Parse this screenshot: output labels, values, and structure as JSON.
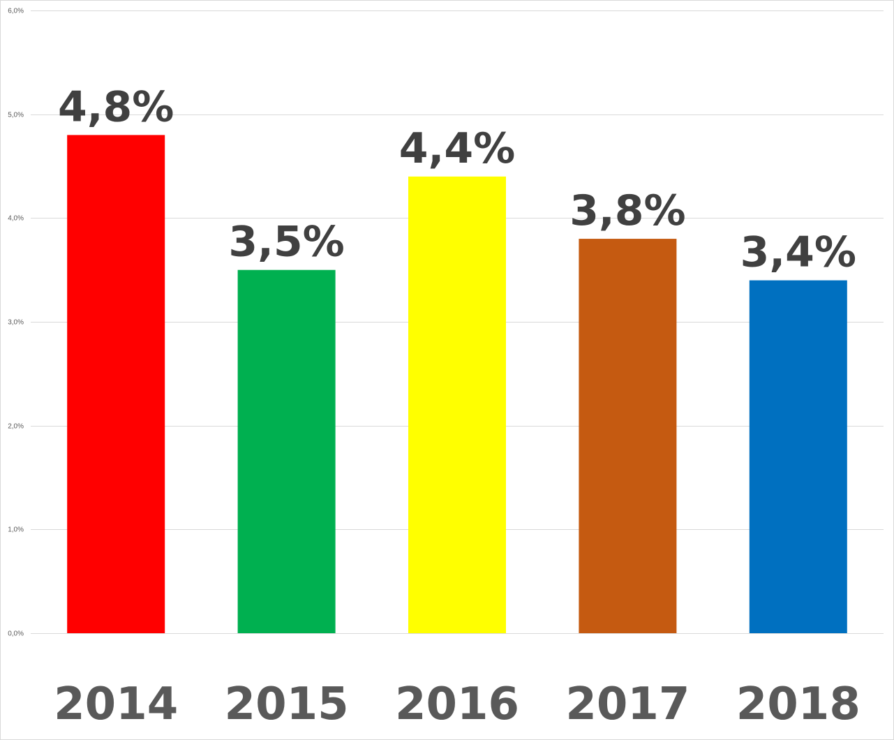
{
  "chart_data": {
    "type": "bar",
    "categories": [
      "2014",
      "2015",
      "2016",
      "2017",
      "2018"
    ],
    "values": [
      4.8,
      3.5,
      4.4,
      3.8,
      3.4
    ],
    "data_labels": [
      "4,8%",
      "3,5%",
      "4,4%",
      "3,8%",
      "3,4%"
    ],
    "colors": [
      "#ff0000",
      "#00b050",
      "#ffff00",
      "#c55a11",
      "#0070c0"
    ],
    "y_ticks": [
      0,
      1,
      2,
      3,
      4,
      5,
      6
    ],
    "y_tick_labels": [
      "0,0%",
      "1,0%",
      "2,0%",
      "3,0%",
      "4,0%",
      "5,0%",
      "6,0%"
    ],
    "ylim": [
      0,
      6
    ],
    "grid": true,
    "legend": "none",
    "title": "",
    "xlabel": "",
    "ylabel": ""
  }
}
